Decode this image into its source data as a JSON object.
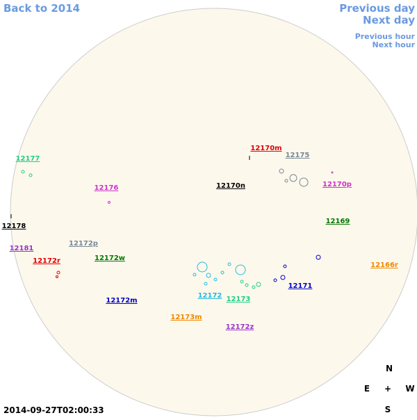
{
  "nav": {
    "back": "Back to 2014",
    "previous_day": "Previous day",
    "next_day": "Next day",
    "previous_hour": "Previous hour",
    "next_hour": "Next hour"
  },
  "timestamp": "2014-09-27T02:00:33",
  "compass": {
    "north": "N",
    "east": "E",
    "center": "+",
    "west": "W",
    "south": "S"
  },
  "regions": [
    {
      "label": "12170m",
      "color": "#dd0000"
    },
    {
      "label": "12175",
      "color": "#778899"
    },
    {
      "label": "12177",
      "color": "#22cc88"
    },
    {
      "label": "12176",
      "color": "#cc33cc"
    },
    {
      "label": "12170n",
      "color": "#000000"
    },
    {
      "label": "12170p",
      "color": "#cc33cc"
    },
    {
      "label": "12178",
      "color": "#000000"
    },
    {
      "label": "12169",
      "color": "#007700"
    },
    {
      "label": "12181",
      "color": "#9933cc"
    },
    {
      "label": "12172p",
      "color": "#778899"
    },
    {
      "label": "12172w",
      "color": "#007700"
    },
    {
      "label": "12172r",
      "color": "#dd0000"
    },
    {
      "label": "12166r",
      "color": "#ee8800"
    },
    {
      "label": "12171",
      "color": "#0000cc"
    },
    {
      "label": "12172",
      "color": "#22bbdd"
    },
    {
      "label": "12173",
      "color": "#22cc88"
    },
    {
      "label": "12172m",
      "color": "#0000cc"
    },
    {
      "label": "12173m",
      "color": "#ee8800"
    },
    {
      "label": "12172z",
      "color": "#9933cc"
    }
  ]
}
